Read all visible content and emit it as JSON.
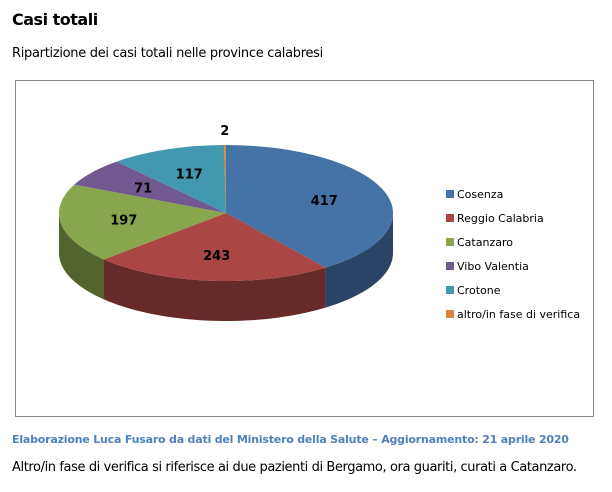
{
  "header": {
    "title": "Casi totali",
    "subtitle": "Ripartizione dei casi totali nelle province calabresi"
  },
  "chart_data": {
    "type": "pie",
    "title": "",
    "categories": [
      "Cosenza",
      "Reggio Calabria",
      "Catanzaro",
      "Vibo Valentia",
      "Crotone",
      "altro/in fase di verifica"
    ],
    "values": [
      417,
      243,
      197,
      71,
      117,
      2
    ],
    "colors": [
      "#4572a7",
      "#aa4643",
      "#89a54e",
      "#71588f",
      "#4198af",
      "#db843d"
    ],
    "legend": "right",
    "style": "3d"
  },
  "footer": {
    "source": "Elaborazione  Luca Fusaro da dati del Ministero della Salute – Aggiornamento: 21 aprile 2020",
    "note": "Altro/in fase di verifica si riferisce ai due pazienti di Bergamo, ora guariti,  curati a Catanzaro."
  }
}
